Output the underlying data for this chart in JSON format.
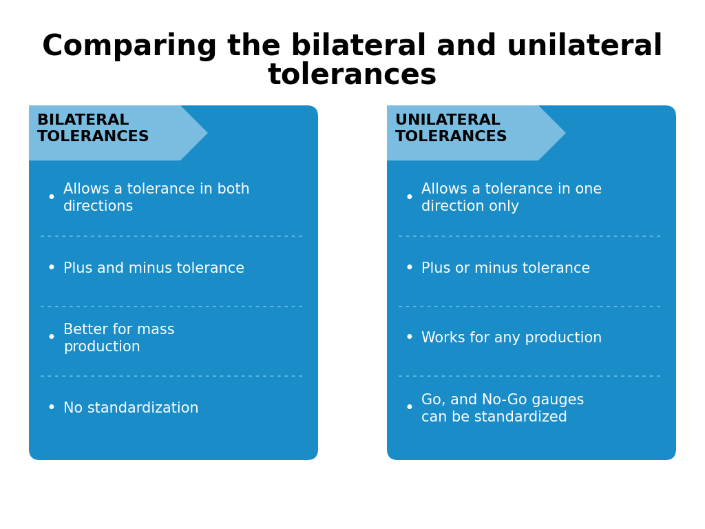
{
  "title_line1": "Comparing the bilateral and unilateral",
  "title_line2": "tolerances",
  "background_color": "#ffffff",
  "card_bg_color": "#1a8cc7",
  "header_arrow_color": "#7bbde0",
  "header_text_color": "#000000",
  "bullet_text_color": "#ffffff",
  "divider_color": "#5bb8e8",
  "left_title": "BILATERAL\nTOLERANCES",
  "right_title": "UNILATERAL\nTOLERANCES",
  "left_bullets": [
    "Allows a tolerance in both\ndirections",
    "Plus and minus tolerance",
    "Better for mass\nproduction",
    "No standardization"
  ],
  "right_bullets": [
    "Allows a tolerance in one\ndirection only",
    "Plus or minus tolerance",
    "Works for any production",
    "Go, and No-Go gauges\ncan be standardized"
  ],
  "title_fontsize": 30,
  "header_fontsize": 16,
  "bullet_fontsize": 15
}
